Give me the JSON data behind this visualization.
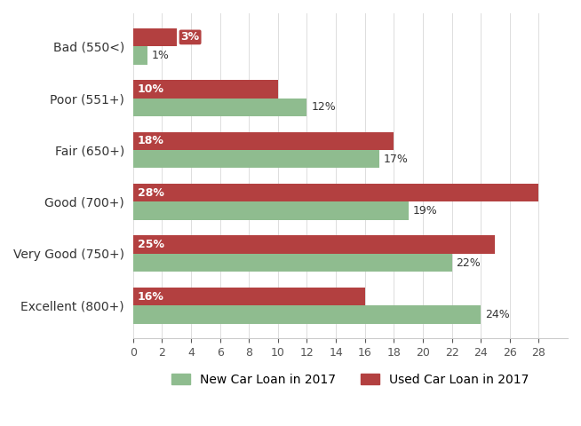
{
  "categories": [
    "Bad (550<)",
    "Poor (551+)",
    "Fair (650+)",
    "Good (700+)",
    "Very Good (750+)",
    "Excellent (800+)"
  ],
  "new_car": [
    1,
    12,
    17,
    19,
    22,
    24
  ],
  "used_car": [
    3,
    10,
    18,
    28,
    25,
    16
  ],
  "new_car_color": "#8fbc8f",
  "used_car_color": "#b34040",
  "new_car_label": "New Car Loan in 2017",
  "used_car_label": "Used Car Loan in 2017",
  "xlim": [
    0,
    30
  ],
  "xticks": [
    0,
    2,
    4,
    6,
    8,
    10,
    12,
    14,
    16,
    18,
    20,
    22,
    24,
    26,
    28
  ],
  "bar_height": 0.35,
  "background_color": "#ffffff",
  "label_color_new": "#4a4a4a",
  "label_color_used": "#ffffff",
  "label_fontsize": 9
}
